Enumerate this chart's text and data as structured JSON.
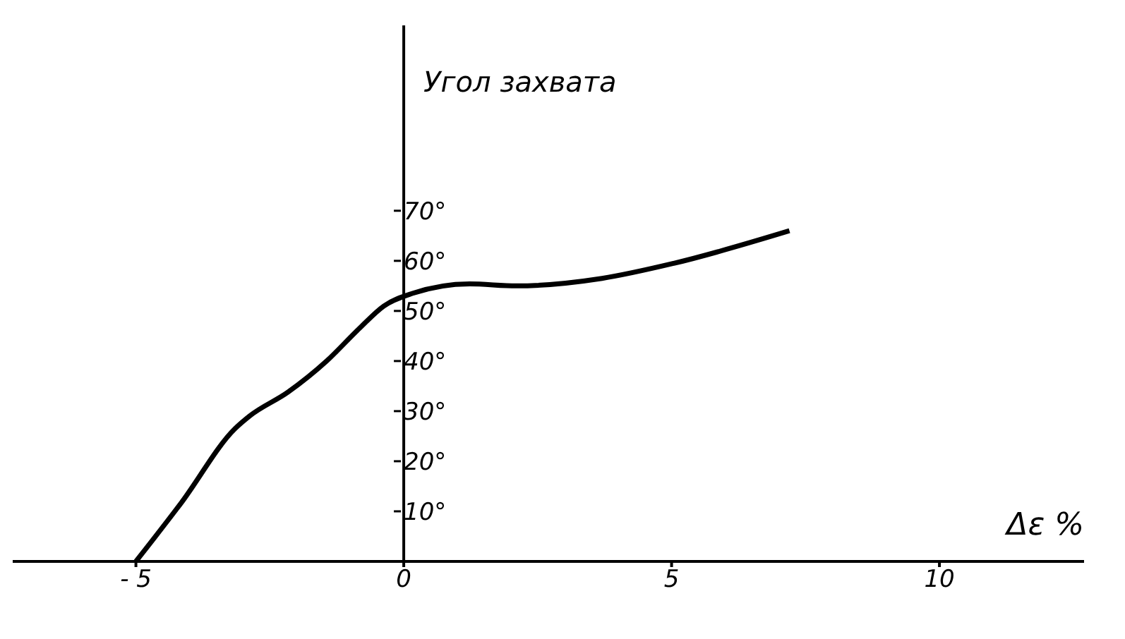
{
  "chart_data": {
    "type": "line",
    "xlabel": "Δε %",
    "ylabel": "Угол захвата",
    "x": [
      -5,
      -4.16,
      -3.15,
      -2.88,
      -2.16,
      -1.44,
      -0.83,
      -0.37,
      0.16,
      1.23,
      2.1,
      3.7,
      5.04,
      7.2
    ],
    "series": [
      {
        "color": "#000000",
        "values": [
          0,
          11.6,
          26.5,
          29,
          33.8,
          40,
          46.5,
          51,
          53.5,
          55.4,
          55,
          56.5,
          59.5,
          66
        ]
      }
    ],
    "xlim": [
      -7.3,
      12.7
    ],
    "ylim": [
      0,
      107
    ],
    "xticks": [
      {
        "value": -5,
        "label": "- 5"
      },
      0,
      5,
      10
    ],
    "yticks": [
      {
        "value": 10,
        "label": "10°"
      },
      {
        "value": 20,
        "label": "20°"
      },
      {
        "value": 30,
        "label": "30°"
      },
      {
        "value": 40,
        "label": "40°"
      },
      {
        "value": 50,
        "label": "50°"
      },
      {
        "value": 60,
        "label": "60°"
      },
      {
        "value": 70,
        "label": "70°"
      }
    ],
    "grid": false,
    "legend": false,
    "marker": "none",
    "line_style": "solid"
  }
}
